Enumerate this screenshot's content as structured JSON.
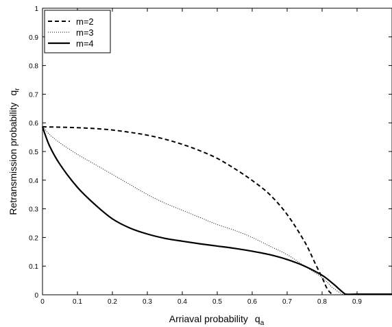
{
  "chart_data": {
    "type": "line",
    "xlabel": "Arriaval probability",
    "xlabel_symbol": "q",
    "xlabel_sub": "a",
    "ylabel": "Retransmission probability",
    "ylabel_symbol": "q",
    "ylabel_sub": "r",
    "xlim": [
      0,
      1
    ],
    "ylim": [
      0,
      1
    ],
    "xticks": [
      0,
      0.1,
      0.2,
      0.3,
      0.4,
      0.5,
      0.6,
      0.7,
      0.8,
      0.9
    ],
    "xtick_labels": [
      "0",
      "0.1",
      "0.2",
      "0.3",
      "0.4",
      "0.5",
      "0.6",
      "0.7",
      "0.8",
      "0.9"
    ],
    "yticks": [
      0,
      0.1,
      0.2,
      0.3,
      0.4,
      0.5,
      0.6,
      0.7,
      0.8,
      0.9,
      1
    ],
    "ytick_labels": [
      "0",
      "0.1",
      "0.2",
      "0.3",
      "0.4",
      "0.5",
      "0.6",
      "0.7",
      "0.8",
      "0.9",
      "1"
    ],
    "grid": false,
    "legend_position": "top-left",
    "series": [
      {
        "name": "m=2",
        "style": "dashed",
        "color": "#000000",
        "x": [
          0,
          0.05,
          0.1,
          0.15,
          0.2,
          0.25,
          0.3,
          0.35,
          0.4,
          0.45,
          0.5,
          0.55,
          0.6,
          0.65,
          0.7,
          0.75,
          0.78,
          0.8,
          0.815,
          0.83
        ],
        "y": [
          0.586,
          0.585,
          0.583,
          0.58,
          0.575,
          0.567,
          0.557,
          0.543,
          0.525,
          0.503,
          0.476,
          0.44,
          0.399,
          0.35,
          0.28,
          0.185,
          0.11,
          0.06,
          0.02,
          0
        ]
      },
      {
        "name": "m=3",
        "style": "dotted",
        "color": "#000000",
        "x": [
          0,
          0.02,
          0.05,
          0.1,
          0.15,
          0.2,
          0.25,
          0.3,
          0.35,
          0.4,
          0.45,
          0.5,
          0.55,
          0.6,
          0.65,
          0.7,
          0.75,
          0.8,
          0.83,
          0.86
        ],
        "y": [
          0.586,
          0.56,
          0.53,
          0.49,
          0.455,
          0.42,
          0.385,
          0.35,
          0.32,
          0.295,
          0.27,
          0.245,
          0.225,
          0.2,
          0.17,
          0.14,
          0.1,
          0.06,
          0.025,
          0
        ]
      },
      {
        "name": "m=4",
        "style": "solid",
        "color": "#000000",
        "x": [
          0,
          0.02,
          0.05,
          0.1,
          0.15,
          0.2,
          0.25,
          0.3,
          0.35,
          0.4,
          0.45,
          0.5,
          0.55,
          0.6,
          0.65,
          0.7,
          0.75,
          0.8,
          0.83,
          0.86,
          0.87,
          0.9,
          0.95,
          1
        ],
        "y": [
          0.586,
          0.52,
          0.455,
          0.375,
          0.315,
          0.265,
          0.233,
          0.212,
          0.197,
          0.187,
          0.178,
          0.17,
          0.162,
          0.152,
          0.14,
          0.123,
          0.1,
          0.068,
          0.04,
          0.008,
          0.002,
          0.002,
          0.002,
          0.002
        ]
      }
    ]
  }
}
